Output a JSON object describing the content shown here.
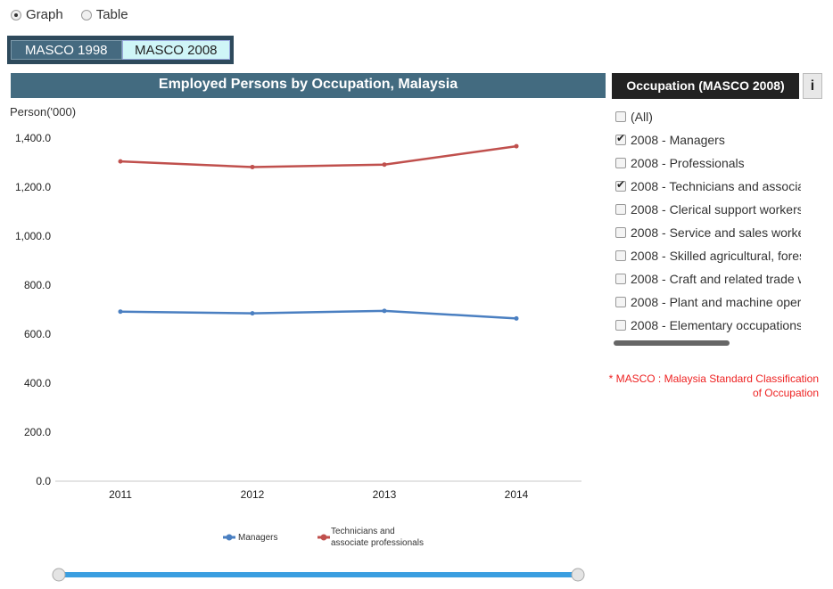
{
  "view_mode": {
    "options": [
      "Graph",
      "Table"
    ],
    "selected": "Graph"
  },
  "masco_tabs": [
    {
      "label": "MASCO 1998",
      "active": false
    },
    {
      "label": "MASCO 2008",
      "active": true
    }
  ],
  "occupation_panel": {
    "header": "Occupation (MASCO 2008)",
    "info_label": "i",
    "items": [
      {
        "label": "(All)",
        "checked": false
      },
      {
        "label": "2008 - Managers",
        "checked": true
      },
      {
        "label": "2008 - Professionals",
        "checked": false
      },
      {
        "label": "2008 - Technicians and associate",
        "checked": true
      },
      {
        "label": "2008 - Clerical support workers",
        "checked": false
      },
      {
        "label": "2008 - Service and sales workers",
        "checked": false
      },
      {
        "label": "2008 - Skilled agricultural, forestry",
        "checked": false
      },
      {
        "label": "2008 - Craft and related trade wo",
        "checked": false
      },
      {
        "label": "2008 - Plant and machine operat",
        "checked": false
      },
      {
        "label": "2008 - Elementary occupations",
        "checked": false
      }
    ],
    "note_line1": "* MASCO : Malaysia Standard Classification",
    "note_line2": "of Occupation"
  },
  "colors": {
    "managers": "#4a7fc1",
    "technicians": "#c0504d",
    "title_bar": "#436b80",
    "slider": "#3a9ee0"
  },
  "chart_data": {
    "type": "line",
    "title": "Employed Persons by Occupation, Malaysia",
    "ylabel": "Person('000)",
    "xlabel": "",
    "categories": [
      "2011",
      "2012",
      "2013",
      "2014"
    ],
    "ylim": [
      0,
      1400
    ],
    "yticks": [
      "0.0",
      "200.0",
      "400.0",
      "600.0",
      "800.0",
      "1,000.0",
      "1,200.0",
      "1,400.0"
    ],
    "series": [
      {
        "name": "Managers",
        "values": [
          692,
          685,
          695,
          664
        ]
      },
      {
        "name": "Technicians and associate professionals",
        "legend_lines": [
          "Technicians and",
          "associate professionals"
        ],
        "values": [
          1305,
          1282,
          1292,
          1367
        ]
      }
    ],
    "grid": false,
    "legend_position": "bottom"
  },
  "range_slider": {
    "start": 0,
    "end": 1
  }
}
